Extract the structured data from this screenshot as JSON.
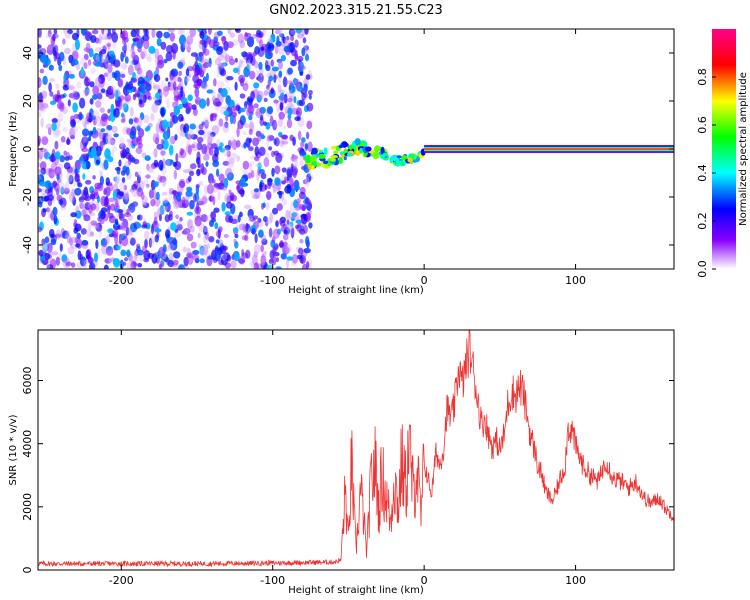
{
  "title": "GN02.2023.315.21.55.C23",
  "chart_data": [
    {
      "type": "heatmap",
      "xlabel": "Height of straight line (km)",
      "ylabel": "Frequency (Hz)",
      "xlim": [
        -255,
        165
      ],
      "ylim": [
        -50,
        50
      ],
      "xticks": [
        -200,
        -100,
        0,
        100
      ],
      "xtick_labels": [
        "-200",
        "-100",
        "0",
        "100"
      ],
      "yticks": [
        -40,
        -20,
        0,
        20,
        40
      ],
      "ytick_labels": [
        "-40",
        "-20",
        "0",
        "20",
        "40"
      ],
      "colorbar": {
        "label": "Normalized spectral amplitude",
        "range": [
          0,
          1
        ],
        "ticks": [
          0.0,
          0.2,
          0.4,
          0.6,
          0.8
        ],
        "tick_labels": [
          "0.0",
          "0.2",
          "0.4",
          "0.6",
          "0.8"
        ],
        "colors": [
          "#ffffff",
          "#8800ff",
          "#0000ff",
          "#00ffff",
          "#00ff00",
          "#ffff00",
          "#ff0000",
          "#ff0088"
        ]
      },
      "regions": [
        {
          "description": "broadband noise",
          "x_range": [
            -255,
            -75
          ],
          "y_range": [
            -50,
            50
          ],
          "amplitude": 0.15
        },
        {
          "description": "signal wander",
          "x_range": [
            -80,
            0
          ],
          "y_center": -2,
          "amplitude": 0.5
        },
        {
          "description": "stable carrier line",
          "x_range": [
            0,
            165
          ],
          "y": 0,
          "amplitude": 1.0
        }
      ]
    },
    {
      "type": "line",
      "xlabel": "Height of straight line (km)",
      "ylabel": "SNR (10 * v/v)",
      "xlim": [
        -255,
        165
      ],
      "ylim": [
        0,
        7600
      ],
      "xticks": [
        -200,
        -100,
        0,
        100
      ],
      "xtick_labels": [
        "-200",
        "-100",
        "0",
        "100"
      ],
      "yticks": [
        0,
        2000,
        4000,
        6000
      ],
      "ytick_labels": [
        "0",
        "2000",
        "4000",
        "6000"
      ],
      "color": "#ee3333",
      "series": [
        {
          "x": [
            -255,
            -200,
            -150,
            -100,
            -60,
            -55,
            -52,
            -50,
            -48,
            -45,
            -42,
            -40,
            -38,
            -35,
            -32,
            -30,
            -28,
            -25,
            -22,
            -20,
            -17,
            -15,
            -12,
            -10,
            -7,
            -5,
            -2,
            0,
            3,
            5,
            8,
            10,
            13,
            15,
            18,
            20,
            23,
            25,
            28,
            30,
            33,
            35,
            38,
            40,
            43,
            45,
            48,
            50,
            53,
            55,
            58,
            60,
            63,
            65,
            68,
            70,
            73,
            75,
            78,
            80,
            83,
            85,
            88,
            90,
            93,
            95,
            98,
            100,
            105,
            110,
            115,
            120,
            125,
            130,
            135,
            140,
            145,
            150,
            155,
            160,
            165
          ],
          "y": [
            200,
            200,
            200,
            220,
            250,
            300,
            2500,
            800,
            3400,
            600,
            2500,
            1700,
            500,
            2800,
            3300,
            1900,
            3000,
            2300,
            1500,
            3000,
            2000,
            3400,
            2600,
            4000,
            2300,
            3400,
            1600,
            3400,
            2800,
            2400,
            3800,
            3300,
            3900,
            5100,
            4800,
            5200,
            6500,
            5800,
            6600,
            7000,
            6200,
            5500,
            4600,
            4800,
            4200,
            3900,
            4100,
            3800,
            4300,
            5200,
            5700,
            5500,
            5800,
            5700,
            4900,
            4300,
            3800,
            3300,
            3000,
            2500,
            2300,
            2200,
            2600,
            2900,
            3300,
            4500,
            4400,
            3900,
            3300,
            3000,
            2800,
            3500,
            2900,
            2800,
            2600,
            2800,
            2300,
            2100,
            2300,
            1900,
            1700
          ]
        }
      ]
    }
  ]
}
